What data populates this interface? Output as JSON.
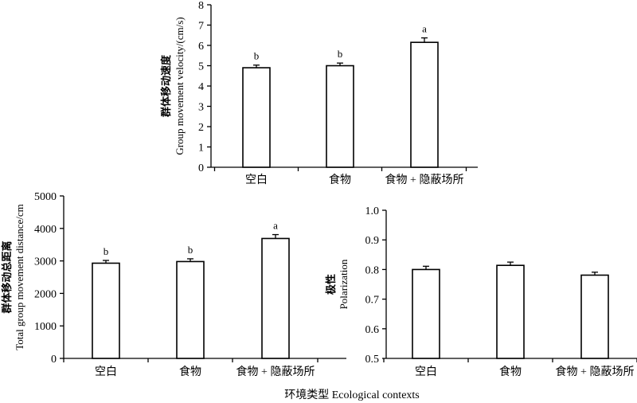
{
  "shared_xlabel": "环境类型  Ecological contexts",
  "chart_data": [
    {
      "type": "bar",
      "categories": [
        "空白",
        "食物",
        "食物 + 隐蔽场所"
      ],
      "values": [
        4.9,
        5.0,
        6.15
      ],
      "errors": [
        0.13,
        0.13,
        0.22
      ],
      "significance": [
        "b",
        "b",
        "a"
      ],
      "ylabel_cn": "群体移动速度",
      "ylabel_en": "Group movement velocity/(cm/s)",
      "ylim": [
        0,
        8
      ],
      "yticks": [
        0,
        1,
        2,
        3,
        4,
        5,
        6,
        7,
        8
      ]
    },
    {
      "type": "bar",
      "categories": [
        "空白",
        "食物",
        "食物 + 隐蔽场所"
      ],
      "values": [
        2930,
        2980,
        3690
      ],
      "errors": [
        85,
        85,
        120
      ],
      "significance": [
        "b",
        "b",
        "a"
      ],
      "ylabel_cn": "群体移动总距离",
      "ylabel_en": "Total group movement distance/cm",
      "ylim": [
        0,
        5000
      ],
      "yticks": [
        0,
        1000,
        2000,
        3000,
        4000,
        5000
      ]
    },
    {
      "type": "bar",
      "categories": [
        "空白",
        "食物",
        "食物 + 隐蔽场所"
      ],
      "values": [
        0.8,
        0.814,
        0.781
      ],
      "errors": [
        0.011,
        0.011,
        0.01
      ],
      "significance": [
        "",
        "",
        ""
      ],
      "ylabel_cn": "极性",
      "ylabel_en": "Polarization",
      "ylim": [
        0.5,
        1.0
      ],
      "yticks": [
        "0.5",
        "0.6",
        "0.7",
        "0.8",
        "0.9",
        "1.0"
      ]
    }
  ]
}
